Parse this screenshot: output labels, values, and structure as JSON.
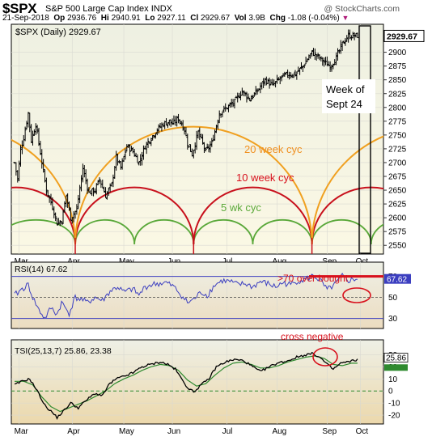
{
  "header": {
    "symbol": "$SPX",
    "name": "S&P 500 Large Cap Index",
    "exchange": "INDX",
    "brand": "@ StockCharts.com",
    "date": "21-Sep-2018",
    "open_label": "Op",
    "open": "2936.76",
    "high_label": "Hi",
    "high": "2940.91",
    "low_label": "Lo",
    "low": "2927.11",
    "close_label": "Cl",
    "close": "2929.67",
    "vol_label": "Vol",
    "vol": "3.9B",
    "chg_label": "Chg",
    "chg": "-1.08 (-0.04%)",
    "chg_marker": "▼"
  },
  "colors": {
    "price_bg": "#fbf8e4",
    "panel_bg_top": "#edf0e6",
    "panel_bg_bot": "#ecd9b0",
    "candle": "#000000",
    "rsi_line": "#3c3fc0",
    "rsi_band": "#3c3fc0",
    "tsi_line": "#000000",
    "tsi_signal": "#2f8a2f",
    "cycle_20": "#f0a020",
    "cycle_10": "#c8101c",
    "cycle_5": "#5aa83a",
    "annotation_red": "#d8101c",
    "annotation_orange": "#f09020"
  },
  "chart_data": [
    {
      "type": "line",
      "panel": "price",
      "title": "$SPX (Daily) 2929.67",
      "last_value": "2929.67",
      "ylim": [
        2540,
        2945
      ],
      "y_ticks": [
        "2550",
        "2575",
        "2600",
        "2625",
        "2650",
        "2675",
        "2700",
        "2725",
        "2750",
        "2775",
        "2800",
        "2825",
        "2850",
        "2875",
        "2900"
      ],
      "x_labels": [
        "Mar",
        "Apr",
        "May",
        "Jun",
        "Jul",
        "Aug",
        "Sep",
        "Oct"
      ],
      "x_label_day": [
        3,
        38,
        72,
        104,
        140,
        173,
        206,
        228
      ],
      "n_days": 242,
      "close_anchors": [
        [
          0,
          2700
        ],
        [
          2,
          2670
        ],
        [
          4,
          2725
        ],
        [
          6,
          2745
        ],
        [
          9,
          2790
        ],
        [
          11,
          2740
        ],
        [
          14,
          2770
        ],
        [
          18,
          2700
        ],
        [
          21,
          2650
        ],
        [
          25,
          2620
        ],
        [
          28,
          2590
        ],
        [
          31,
          2595
        ],
        [
          34,
          2640
        ],
        [
          37,
          2600
        ],
        [
          41,
          2615
        ],
        [
          45,
          2690
        ],
        [
          49,
          2645
        ],
        [
          53,
          2650
        ],
        [
          56,
          2670
        ],
        [
          60,
          2640
        ],
        [
          64,
          2660
        ],
        [
          67,
          2710
        ],
        [
          70,
          2690
        ],
        [
          74,
          2730
        ],
        [
          78,
          2720
        ],
        [
          82,
          2700
        ],
        [
          86,
          2730
        ],
        [
          90,
          2745
        ],
        [
          94,
          2760
        ],
        [
          98,
          2770
        ],
        [
          102,
          2775
        ],
        [
          104,
          2770
        ],
        [
          108,
          2780
        ],
        [
          112,
          2760
        ],
        [
          114,
          2735
        ],
        [
          117,
          2715
        ],
        [
          121,
          2755
        ],
        [
          126,
          2720
        ],
        [
          130,
          2735
        ],
        [
          135,
          2790
        ],
        [
          140,
          2800
        ],
        [
          145,
          2810
        ],
        [
          150,
          2830
        ],
        [
          155,
          2815
        ],
        [
          160,
          2830
        ],
        [
          165,
          2850
        ],
        [
          170,
          2840
        ],
        [
          176,
          2855
        ],
        [
          180,
          2860
        ],
        [
          185,
          2860
        ],
        [
          190,
          2875
        ],
        [
          196,
          2900
        ],
        [
          201,
          2890
        ],
        [
          205,
          2880
        ],
        [
          208,
          2875
        ],
        [
          212,
          2890
        ],
        [
          216,
          2915
        ],
        [
          220,
          2930
        ],
        [
          226,
          2930
        ]
      ],
      "annotations": [
        "20 week cyc",
        "10 week cyc",
        "5 wk cyc",
        "Week of",
        "Sept 24"
      ]
    },
    {
      "type": "line",
      "panel": "rsi",
      "title": "RSI(14) 67.62",
      "last_value": "67.62",
      "ylim": [
        22,
        82
      ],
      "y_ticks": [
        "70",
        "50",
        "30"
      ],
      "bands": [
        70,
        30
      ],
      "anchors": [
        [
          0,
          52
        ],
        [
          5,
          58
        ],
        [
          9,
          62
        ],
        [
          12,
          50
        ],
        [
          16,
          38
        ],
        [
          20,
          30
        ],
        [
          24,
          40
        ],
        [
          28,
          34
        ],
        [
          31,
          45
        ],
        [
          36,
          35
        ],
        [
          40,
          50
        ],
        [
          44,
          48
        ],
        [
          48,
          45
        ],
        [
          53,
          50
        ],
        [
          58,
          47
        ],
        [
          63,
          56
        ],
        [
          68,
          60
        ],
        [
          72,
          55
        ],
        [
          78,
          58
        ],
        [
          82,
          52
        ],
        [
          86,
          60
        ],
        [
          90,
          62
        ],
        [
          94,
          63
        ],
        [
          100,
          64
        ],
        [
          105,
          60
        ],
        [
          110,
          52
        ],
        [
          114,
          45
        ],
        [
          118,
          48
        ],
        [
          123,
          55
        ],
        [
          127,
          52
        ],
        [
          132,
          62
        ],
        [
          137,
          66
        ],
        [
          142,
          65
        ],
        [
          147,
          62
        ],
        [
          152,
          63
        ],
        [
          157,
          60
        ],
        [
          162,
          65
        ],
        [
          167,
          63
        ],
        [
          172,
          60
        ],
        [
          177,
          64
        ],
        [
          182,
          62
        ],
        [
          187,
          66
        ],
        [
          192,
          67
        ],
        [
          197,
          71
        ],
        [
          202,
          65
        ],
        [
          206,
          57
        ],
        [
          211,
          62
        ],
        [
          216,
          70
        ],
        [
          220,
          66
        ],
        [
          226,
          68
        ]
      ],
      "annotations": [
        ">70 over bought"
      ]
    },
    {
      "type": "line",
      "panel": "tsi",
      "title": "TSI(25,13,7) 25.86, 23.38",
      "series": [
        {
          "name": "TSI(25,13,7)",
          "last": "25.86"
        },
        {
          "name": "",
          "last": "23.38"
        }
      ],
      "ylim": [
        -26,
        41
      ],
      "y_ticks": [
        "30",
        "20",
        "10",
        "0",
        "-10",
        "-20"
      ],
      "tsi_anchors": [
        [
          0,
          5
        ],
        [
          5,
          8
        ],
        [
          10,
          10
        ],
        [
          15,
          0
        ],
        [
          20,
          -12
        ],
        [
          25,
          -18
        ],
        [
          28,
          -22
        ],
        [
          32,
          -17
        ],
        [
          37,
          -10
        ],
        [
          42,
          -14
        ],
        [
          47,
          -8
        ],
        [
          53,
          -2
        ],
        [
          58,
          -4
        ],
        [
          62,
          5
        ],
        [
          67,
          10
        ],
        [
          72,
          12
        ],
        [
          78,
          15
        ],
        [
          84,
          20
        ],
        [
          90,
          22
        ],
        [
          96,
          24
        ],
        [
          101,
          22
        ],
        [
          106,
          18
        ],
        [
          110,
          10
        ],
        [
          114,
          3
        ],
        [
          118,
          -1
        ],
        [
          122,
          4
        ],
        [
          128,
          10
        ],
        [
          133,
          20
        ],
        [
          139,
          24
        ],
        [
          145,
          26
        ],
        [
          151,
          25
        ],
        [
          157,
          20
        ],
        [
          162,
          16
        ],
        [
          168,
          20
        ],
        [
          173,
          23
        ],
        [
          180,
          25
        ],
        [
          186,
          28
        ],
        [
          192,
          30
        ],
        [
          197,
          31
        ],
        [
          202,
          27
        ],
        [
          206,
          22
        ],
        [
          210,
          18
        ],
        [
          215,
          23
        ],
        [
          220,
          24
        ],
        [
          226,
          26
        ]
      ],
      "signal_anchors": [
        [
          0,
          8
        ],
        [
          6,
          8
        ],
        [
          12,
          5
        ],
        [
          18,
          -5
        ],
        [
          24,
          -13
        ],
        [
          30,
          -17
        ],
        [
          36,
          -14
        ],
        [
          42,
          -11
        ],
        [
          48,
          -8
        ],
        [
          54,
          -4
        ],
        [
          60,
          0
        ],
        [
          66,
          6
        ],
        [
          72,
          10
        ],
        [
          78,
          13
        ],
        [
          84,
          17
        ],
        [
          90,
          20
        ],
        [
          96,
          22
        ],
        [
          102,
          21
        ],
        [
          108,
          17
        ],
        [
          114,
          9
        ],
        [
          120,
          4
        ],
        [
          126,
          6
        ],
        [
          132,
          13
        ],
        [
          138,
          19
        ],
        [
          144,
          23
        ],
        [
          150,
          24
        ],
        [
          156,
          22
        ],
        [
          162,
          19
        ],
        [
          168,
          19
        ],
        [
          174,
          21
        ],
        [
          180,
          24
        ],
        [
          186,
          26
        ],
        [
          192,
          28
        ],
        [
          198,
          29
        ],
        [
          204,
          27
        ],
        [
          210,
          22
        ],
        [
          216,
          21
        ],
        [
          222,
          23
        ],
        [
          226,
          23
        ]
      ],
      "annotations": [
        "cross negative"
      ]
    }
  ]
}
